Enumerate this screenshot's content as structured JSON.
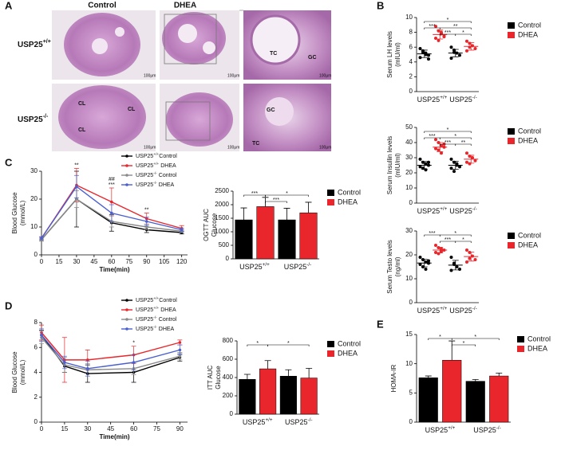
{
  "panels": [
    "A",
    "B",
    "C",
    "D",
    "E"
  ],
  "histology": {
    "columns": [
      "Control",
      "DHEA"
    ],
    "rows": [
      "USP25+/+",
      "USP25-/-"
    ],
    "scale_bar": "100μm",
    "labels": [
      "TC",
      "GC",
      "CL",
      "CL",
      "CL",
      "GC",
      "TC"
    ]
  },
  "chart_data": [
    {
      "type": "dot",
      "ylabel": [
        "Serum LH levels",
        "(mIU/ml)"
      ],
      "categories": [
        "USP25+/+",
        "USP25-/-"
      ],
      "ylim": [
        0,
        10
      ],
      "yticks": [
        0,
        2,
        4,
        6,
        8,
        10
      ],
      "series": [
        {
          "name": "Control",
          "color": "#000000",
          "points": [
            [
              5.8,
              5.5,
              5.2,
              4.9,
              4.6,
              5.3,
              5.0,
              4.4
            ],
            [
              6.0,
              5.6,
              5.2,
              4.9,
              4.5,
              5.3
            ]
          ],
          "means": [
            5.1,
            5.2
          ],
          "sds": [
            0.5,
            0.5
          ]
        },
        {
          "name": "DHEA",
          "color": "#e8262b",
          "points": [
            [
              8.8,
              8.2,
              7.8,
              7.5,
              7.2,
              6.9,
              8.0,
              7.4
            ],
            [
              6.8,
              6.5,
              6.2,
              5.8,
              5.5,
              6.0
            ]
          ],
          "means": [
            7.7,
            6.1
          ],
          "sds": [
            0.6,
            0.5
          ]
        }
      ],
      "brackets": [
        {
          "from": 0,
          "to": 3,
          "text": "*"
        },
        {
          "from": 0,
          "to": 1,
          "text": "***"
        },
        {
          "from": 1,
          "to": 3,
          "text": "**"
        },
        {
          "from": 1,
          "to": 2,
          "text": "***"
        },
        {
          "from": 2,
          "to": 3,
          "text": "*"
        }
      ]
    },
    {
      "type": "dot",
      "ylabel": [
        "Serum Insullin levels",
        "(mIU/ml)"
      ],
      "categories": [
        "USP25+/+",
        "USP25-/-"
      ],
      "ylim": [
        0,
        50
      ],
      "yticks": [
        0,
        10,
        20,
        30,
        40,
        50
      ],
      "series": [
        {
          "name": "Control",
          "color": "#000000",
          "points": [
            [
              29,
              27,
              26,
              25,
              24,
              23,
              22,
              27
            ],
            [
              29,
              27,
              25,
              24,
              23,
              21,
              26
            ]
          ],
          "means": [
            25,
            25
          ],
          "sds": [
            2.5,
            2.7
          ]
        },
        {
          "name": "DHEA",
          "color": "#e8262b",
          "points": [
            [
              42,
              40,
              38,
              37,
              36,
              35,
              33,
              39
            ],
            [
              33,
              31,
              30,
              28,
              27,
              26
            ]
          ],
          "means": [
            37,
            29
          ],
          "sds": [
            3,
            2.6
          ]
        }
      ],
      "brackets": [
        {
          "from": 0,
          "to": 3,
          "text": "*"
        },
        {
          "from": 0,
          "to": 1,
          "text": "***"
        },
        {
          "from": 1,
          "to": 3,
          "text": "*"
        },
        {
          "from": 1,
          "to": 2,
          "text": "***"
        },
        {
          "from": 2,
          "to": 3,
          "text": "**"
        }
      ]
    },
    {
      "type": "dot",
      "ylabel": [
        "Serum Testo levels",
        "(ng/ml)"
      ],
      "categories": [
        "USP25+/+",
        "USP25-/-"
      ],
      "ylim": [
        0,
        30
      ],
      "yticks": [
        0,
        10,
        20,
        30
      ],
      "series": [
        {
          "name": "Control",
          "color": "#000000",
          "points": [
            [
              19,
              18,
              17,
              16.5,
              16,
              15,
              14,
              17.5
            ],
            [
              19,
              16,
              15,
              14,
              13.5,
              16.5
            ]
          ],
          "means": [
            16.6,
            15.7
          ],
          "sds": [
            1.6,
            2
          ]
        },
        {
          "name": "DHEA",
          "color": "#e8262b",
          "points": [
            [
              24,
              23,
              22.5,
              22,
              21,
              20.5,
              21.5
            ],
            [
              22,
              21,
              19.5,
              18,
              17,
              18.5
            ]
          ],
          "means": [
            22,
            19.3
          ],
          "sds": [
            1.2,
            1.9
          ]
        }
      ],
      "brackets": [
        {
          "from": 0,
          "to": 1,
          "text": "***"
        },
        {
          "from": 1,
          "to": 3,
          "text": "*"
        },
        {
          "from": 1,
          "to": 2,
          "text": "***"
        },
        {
          "from": 2,
          "to": 3,
          "text": "*"
        }
      ]
    },
    {
      "type": "line",
      "ylabel": [
        "Blood Glucose",
        "(mmol/L)"
      ],
      "xlabel": "Time(min)",
      "x": [
        0,
        30,
        60,
        90,
        120
      ],
      "xlim": [
        0,
        125
      ],
      "xticks": [
        0,
        15,
        30,
        45,
        60,
        75,
        90,
        105,
        120
      ],
      "ylim": [
        0,
        30
      ],
      "yticks": [
        0,
        10,
        20,
        30
      ],
      "series": [
        {
          "name": "USP25+/+Control",
          "color": "#000000",
          "values": [
            5.5,
            20,
            11.5,
            9,
            8
          ],
          "errors": [
            0.5,
            10,
            3,
            1,
            0.5
          ]
        },
        {
          "name": "USP25+/+ DHEA",
          "color": "#e8262b",
          "values": [
            6,
            25,
            19,
            13,
            9.5
          ],
          "errors": [
            0.5,
            6,
            5,
            2,
            1
          ]
        },
        {
          "name": "USP25-/- Control",
          "color": "#8a8a8a",
          "values": [
            5.5,
            20,
            12,
            10,
            8.5
          ],
          "errors": [
            0.5,
            3,
            2,
            1,
            0.5
          ]
        },
        {
          "name": "USP25-/- DHEA",
          "color": "#4a5fd0",
          "values": [
            6,
            24.5,
            15,
            12,
            9
          ],
          "errors": [
            0.5,
            4,
            3,
            1.5,
            0.5
          ]
        }
      ],
      "annotations": [
        {
          "x": 30,
          "text": "**"
        },
        {
          "x": 60,
          "text": "***"
        },
        {
          "x": 60,
          "text": "##"
        },
        {
          "x": 90,
          "text": "**"
        }
      ]
    },
    {
      "type": "bar",
      "ylabel": [
        "OGTT AUC",
        "Glucose"
      ],
      "categories": [
        "USP25+/+",
        "USP25-/-"
      ],
      "ylim": [
        0,
        2500
      ],
      "yticks": [
        0,
        500,
        1000,
        1500,
        2000,
        2500
      ],
      "series": [
        {
          "name": "Control",
          "color": "#000000",
          "values": [
            1440,
            1440
          ],
          "errors": [
            440,
            430
          ]
        },
        {
          "name": "DHEA",
          "color": "#e8262b",
          "values": [
            1930,
            1700
          ],
          "errors": [
            340,
            390
          ]
        }
      ],
      "brackets": [
        {
          "from": 1,
          "to": 3,
          "text": "*"
        },
        {
          "from": 0,
          "to": 1,
          "text": "***"
        },
        {
          "from": 1,
          "to": 2,
          "text": "***"
        }
      ]
    },
    {
      "type": "line",
      "ylabel": [
        "Blood Glucose",
        "(mmol/L)"
      ],
      "xlabel": "Time(min)",
      "x": [
        0,
        15,
        30,
        60,
        90
      ],
      "xlim": [
        0,
        95
      ],
      "xticks": [
        0,
        15,
        30,
        45,
        60,
        75,
        90
      ],
      "ylim": [
        0,
        8
      ],
      "yticks": [
        0,
        2,
        4,
        6,
        8
      ],
      "series": [
        {
          "name": "USP25+/+Control",
          "color": "#000000",
          "values": [
            7,
            4.5,
            3.9,
            4,
            5.2
          ],
          "errors": [
            0.4,
            0.5,
            0.7,
            0.8,
            0.3
          ]
        },
        {
          "name": "USP25+/+ DHEA",
          "color": "#e8262b",
          "values": [
            7.2,
            5,
            5,
            5.4,
            6.4
          ],
          "errors": [
            0.6,
            1.8,
            0.8,
            0.7,
            0.2
          ]
        },
        {
          "name": "USP25-/- Control",
          "color": "#8a8a8a",
          "values": [
            6.8,
            4.6,
            4.2,
            4.3,
            5.3
          ],
          "errors": [
            0.5,
            0.6,
            0.5,
            0.5,
            0.3
          ]
        },
        {
          "name": "USP25-/- DHEA",
          "color": "#4a5fd0",
          "values": [
            7,
            4.8,
            4.3,
            4.8,
            5.8
          ],
          "errors": [
            0.5,
            0.5,
            0.6,
            0.6,
            0.4
          ]
        }
      ],
      "annotations": [
        {
          "x": 60,
          "text": "*"
        }
      ]
    },
    {
      "type": "bar",
      "ylabel": [
        "ITT AUC",
        "Glucose"
      ],
      "categories": [
        "USP25+/+",
        "USP25-/-"
      ],
      "ylim": [
        0,
        800
      ],
      "yticks": [
        0,
        200,
        400,
        600,
        800
      ],
      "series": [
        {
          "name": "Control",
          "color": "#000000",
          "values": [
            380,
            415
          ],
          "errors": [
            55,
            70
          ]
        },
        {
          "name": "DHEA",
          "color": "#e8262b",
          "values": [
            495,
            395
          ],
          "errors": [
            90,
            105
          ]
        }
      ],
      "brackets": [
        {
          "from": 0,
          "to": 1,
          "text": "*"
        },
        {
          "from": 1,
          "to": 3,
          "text": "*"
        }
      ]
    },
    {
      "type": "bar",
      "ylabel": [
        "HOMA-IR"
      ],
      "categories": [
        "USP25+/+",
        "USP25-/-"
      ],
      "ylim": [
        0,
        15
      ],
      "yticks": [
        0,
        5,
        10,
        15
      ],
      "series": [
        {
          "name": "Control",
          "color": "#000000",
          "values": [
            7.6,
            7
          ],
          "errors": [
            0.3,
            0.3
          ]
        },
        {
          "name": "DHEA",
          "color": "#e8262b",
          "values": [
            10.6,
            7.9
          ],
          "errors": [
            3.3,
            0.5
          ]
        }
      ],
      "brackets": [
        {
          "from": 1,
          "to": 3,
          "text": "*"
        },
        {
          "from": 0,
          "to": 1,
          "text": "*"
        },
        {
          "from": 1,
          "to": 2,
          "text": "*"
        }
      ]
    }
  ]
}
